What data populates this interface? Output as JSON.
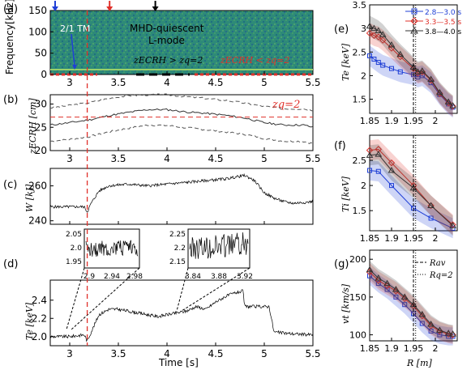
{
  "panel_letters": [
    "(a)",
    "(b)",
    "(c)",
    "(d)",
    "(e)",
    "(f)",
    "(g)"
  ],
  "colors": {
    "blue": "#1f3fd6",
    "red": "#e0302a",
    "dark": "#333333",
    "spectro_bg": "#2e8a78"
  },
  "chart_data": [
    {
      "id": "a",
      "type": "heatmap",
      "ylabel": "Frequency[kHz]",
      "xlim": [
        2.8,
        5.5
      ],
      "ylim": [
        0,
        150
      ],
      "xticks": [
        "3",
        "3.5",
        "4",
        "4.5",
        "5",
        "5.5"
      ],
      "yticks": [
        "0",
        "50",
        "100",
        "150"
      ],
      "annotations": {
        "mode": "2/1 TM",
        "regime1": "MHD-quiescent",
        "regime2": "L-mode",
        "cond1": "zECRH > zq=2",
        "cond2": "zECRH < zq=2"
      },
      "arrows": [
        {
          "x": 2.85,
          "color": "blue"
        },
        {
          "x": 3.41,
          "color": "red"
        },
        {
          "x": 3.88,
          "color": "black"
        }
      ],
      "vline_x": 3.18
    },
    {
      "id": "b",
      "type": "line",
      "ylabel": "zECRH [cm]",
      "xlim": [
        2.8,
        5.5
      ],
      "ylim": [
        20,
        32
      ],
      "xticks": [
        "3",
        "3.5",
        "4",
        "4.5",
        "5",
        "5.5"
      ],
      "yticks": [
        "20",
        "25",
        "30"
      ],
      "hline_label": "zq=2",
      "hline_y": 27.2,
      "x": [
        2.8,
        3.0,
        3.2,
        3.4,
        3.6,
        3.8,
        4.0,
        4.2,
        4.4,
        4.6,
        4.8,
        5.0,
        5.2,
        5.4,
        5.5
      ],
      "center": [
        25.5,
        26.0,
        26.6,
        27.5,
        28.2,
        28.8,
        28.8,
        28.3,
        28.0,
        27.6,
        27.0,
        26.0,
        25.5,
        25.5,
        25.0
      ],
      "upper": [
        29.2,
        29.7,
        30.3,
        31.2,
        31.8,
        32.0,
        32.0,
        31.6,
        31.2,
        30.8,
        30.2,
        29.5,
        29.0,
        29.0,
        28.7
      ],
      "lower": [
        22.0,
        22.4,
        23.0,
        24.0,
        24.8,
        25.5,
        25.4,
        24.9,
        24.5,
        24.0,
        23.5,
        22.6,
        22.0,
        22.0,
        21.5
      ]
    },
    {
      "id": "c",
      "type": "line",
      "ylabel": "W [kJ]",
      "xlim": [
        2.8,
        5.5
      ],
      "ylim": [
        238,
        270
      ],
      "xticks": [
        "3",
        "3.5",
        "4",
        "4.5",
        "5",
        "5.5"
      ],
      "yticks": [
        "240",
        "260"
      ],
      "x": [
        2.8,
        3.0,
        3.15,
        3.18,
        3.22,
        3.3,
        3.4,
        3.6,
        3.8,
        4.0,
        4.2,
        4.4,
        4.6,
        4.8,
        4.9,
        5.0,
        5.1,
        5.2,
        5.3,
        5.5
      ],
      "y": [
        248,
        248,
        248,
        245,
        250,
        257,
        260,
        261,
        260,
        261,
        262,
        263,
        264,
        266,
        263,
        256,
        253,
        251,
        250,
        251
      ]
    },
    {
      "id": "d",
      "type": "line",
      "ylabel": "Te [keV]",
      "xlabel": "Time [s]",
      "xlim": [
        2.8,
        5.5
      ],
      "ylim": [
        1.9,
        2.62
      ],
      "xticks": [
        "3",
        "3.5",
        "4",
        "4.5",
        "5",
        "5.5"
      ],
      "yticks": [
        "2.0",
        "2.2",
        "2.4"
      ],
      "x": [
        2.8,
        3.0,
        3.15,
        3.18,
        3.2,
        3.3,
        3.4,
        3.5,
        3.7,
        3.9,
        4.0,
        4.2,
        4.3,
        4.4,
        4.5,
        4.6,
        4.7,
        4.78,
        4.8,
        5.0,
        5.05,
        5.1,
        5.3,
        5.5
      ],
      "y": [
        2.0,
        2.0,
        2.02,
        1.95,
        2.0,
        2.24,
        2.3,
        2.3,
        2.26,
        2.22,
        2.24,
        2.28,
        2.33,
        2.3,
        2.38,
        2.44,
        2.48,
        2.5,
        2.33,
        2.33,
        2.33,
        2.05,
        2.03,
        2.02
      ],
      "insets": [
        {
          "xticks": [
            "2.9",
            "2.94",
            "2.98"
          ],
          "yticks": [
            "2.05",
            "2.0",
            "1.95"
          ]
        },
        {
          "xticks": [
            "3.84",
            "3.88",
            "3.92"
          ],
          "yticks": [
            "2.25",
            "2.2",
            "2.15"
          ]
        }
      ]
    },
    {
      "id": "e",
      "type": "line",
      "ylabel": "Te [keV]",
      "xlim": [
        1.85,
        2.05
      ],
      "ylim": [
        1.2,
        3.5
      ],
      "xticks": [
        "1.85",
        "1.9",
        "1.95",
        "2"
      ],
      "yticks": [
        "1.5",
        "2",
        "2.5",
        "3",
        "3.5"
      ],
      "x": [
        1.85,
        1.86,
        1.87,
        1.88,
        1.9,
        1.92,
        1.95,
        1.96,
        1.97,
        1.99,
        2.01,
        2.03,
        2.04
      ],
      "series": [
        {
          "name": "2.8—3.0 s",
          "color": "blue",
          "marker": "square",
          "y": [
            2.42,
            2.35,
            2.28,
            2.22,
            2.15,
            2.08,
            2.02,
            1.97,
            2.0,
            1.85,
            1.6,
            1.4,
            1.33
          ]
        },
        {
          "name": "3.3—3.5 s",
          "color": "red",
          "marker": "diamond",
          "y": [
            2.9,
            2.85,
            2.82,
            2.75,
            2.58,
            2.4,
            2.15,
            2.05,
            2.08,
            1.9,
            1.62,
            1.42,
            1.35
          ]
        },
        {
          "name": "3.8—4.0 s",
          "color": "dark",
          "marker": "triangle",
          "y": [
            3.05,
            3.0,
            2.95,
            2.87,
            2.65,
            2.45,
            2.18,
            2.08,
            2.1,
            1.92,
            1.64,
            1.44,
            1.36
          ]
        }
      ],
      "vlines": [
        1.95,
        1.955
      ]
    },
    {
      "id": "f",
      "type": "line",
      "ylabel": "Ti [keV]",
      "xlim": [
        1.85,
        2.05
      ],
      "ylim": [
        1.1,
        3.0
      ],
      "xticks": [
        "1.85",
        "1.9",
        "1.95",
        "2"
      ],
      "yticks": [
        "1.5",
        "2",
        "2.5"
      ],
      "x": [
        1.85,
        1.87,
        1.9,
        1.95,
        1.99,
        2.04
      ],
      "series": [
        {
          "name": "2.8—3.0 s",
          "color": "blue",
          "marker": "square",
          "y": [
            2.3,
            2.28,
            2.0,
            1.55,
            1.35,
            1.15
          ]
        },
        {
          "name": "3.3—3.5 s",
          "color": "red",
          "marker": "diamond",
          "y": [
            2.7,
            2.72,
            2.45,
            2.0,
            1.6,
            1.22
          ]
        },
        {
          "name": "3.8—4.0 s",
          "color": "dark",
          "marker": "triangle",
          "y": [
            2.6,
            2.62,
            2.3,
            1.95,
            1.6,
            1.2
          ]
        }
      ],
      "vlines": [
        1.95,
        1.955
      ]
    },
    {
      "id": "g",
      "type": "line",
      "ylabel": "vt [km/s]",
      "xlabel": "R [m]",
      "xlim": [
        1.85,
        2.05
      ],
      "ylim": [
        92,
        212
      ],
      "xticks": [
        "1.85",
        "1.9",
        "1.95",
        "2"
      ],
      "yticks": [
        "100",
        "150",
        "200"
      ],
      "x": [
        1.85,
        1.87,
        1.89,
        1.91,
        1.93,
        1.95,
        1.97,
        1.99,
        2.01,
        2.03,
        2.04
      ],
      "series": [
        {
          "name": "2.8—3.0 s",
          "color": "blue",
          "marker": "square",
          "y": [
            178,
            168,
            160,
            150,
            140,
            128,
            115,
            105,
            100,
            98,
            98
          ]
        },
        {
          "name": "3.3—3.5 s",
          "color": "red",
          "marker": "diamond",
          "y": [
            183,
            172,
            165,
            158,
            148,
            138,
            125,
            112,
            105,
            101,
            100
          ]
        },
        {
          "name": "3.8—4.0 s",
          "color": "dark",
          "marker": "triangle",
          "y": [
            186,
            175,
            168,
            160,
            150,
            140,
            127,
            114,
            106,
            102,
            101
          ]
        }
      ],
      "legend": [
        "Rav",
        "Rq=2"
      ],
      "vlines": [
        1.95,
        1.955
      ]
    }
  ]
}
